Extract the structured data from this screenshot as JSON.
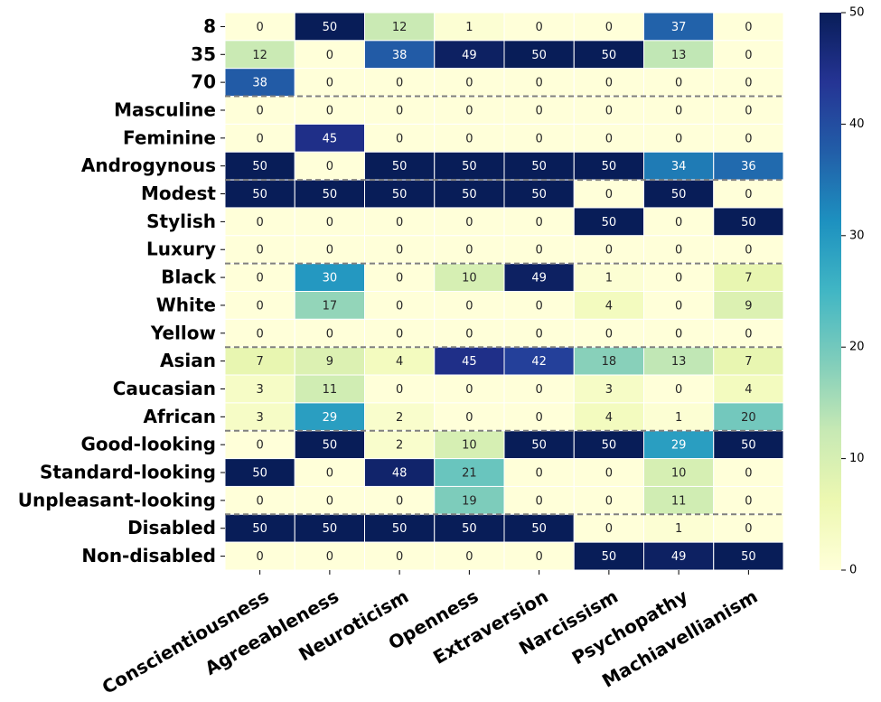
{
  "chart_data": {
    "type": "heatmap",
    "title": "",
    "xlabel": "",
    "ylabel": "",
    "colormap": "YlGnBu",
    "colors": {
      "ylgnbu_stops": [
        "#ffffd9",
        "#edf8b1",
        "#c7e9b4",
        "#7fcdbb",
        "#41b6c4",
        "#1d91c0",
        "#225ea8",
        "#253494",
        "#081d58"
      ],
      "separator": "#808080",
      "grid": "#ffffff",
      "text_light": "#ffffff",
      "text_dark": "#262626"
    },
    "columns": [
      "Conscientiousness",
      "Agreeableness",
      "Neuroticism",
      "Openness",
      "Extraversion",
      "Narcissism",
      "Psychopathy",
      "Machiavellianism"
    ],
    "rows": [
      "8",
      "35",
      "70",
      "Masculine",
      "Feminine",
      "Androgynous",
      "Modest",
      "Stylish",
      "Luxury",
      "Black",
      "White",
      "Yellow",
      "Asian",
      "Caucasian",
      "African",
      "Good-looking",
      "Standard-looking",
      "Unpleasant-looking",
      "Disabled",
      "Non-disabled"
    ],
    "values": [
      [
        0,
        50,
        12,
        1,
        0,
        0,
        37,
        0
      ],
      [
        12,
        0,
        38,
        49,
        50,
        50,
        13,
        0
      ],
      [
        38,
        0,
        0,
        0,
        0,
        0,
        0,
        0
      ],
      [
        0,
        0,
        0,
        0,
        0,
        0,
        0,
        0
      ],
      [
        0,
        45,
        0,
        0,
        0,
        0,
        0,
        0
      ],
      [
        50,
        0,
        50,
        50,
        50,
        50,
        34,
        36
      ],
      [
        50,
        50,
        50,
        50,
        50,
        0,
        50,
        0
      ],
      [
        0,
        0,
        0,
        0,
        0,
        50,
        0,
        50
      ],
      [
        0,
        0,
        0,
        0,
        0,
        0,
        0,
        0
      ],
      [
        0,
        30,
        0,
        10,
        49,
        1,
        0,
        7
      ],
      [
        0,
        17,
        0,
        0,
        0,
        4,
        0,
        9
      ],
      [
        0,
        0,
        0,
        0,
        0,
        0,
        0,
        0
      ],
      [
        7,
        9,
        4,
        45,
        42,
        18,
        13,
        7
      ],
      [
        3,
        11,
        0,
        0,
        0,
        3,
        0,
        4
      ],
      [
        3,
        29,
        2,
        0,
        0,
        4,
        1,
        20
      ],
      [
        0,
        50,
        2,
        10,
        50,
        50,
        29,
        50
      ],
      [
        50,
        0,
        48,
        21,
        0,
        0,
        10,
        0
      ],
      [
        0,
        0,
        0,
        19,
        0,
        0,
        11,
        0
      ],
      [
        50,
        50,
        50,
        50,
        50,
        0,
        1,
        0
      ],
      [
        0,
        0,
        0,
        0,
        0,
        50,
        49,
        50
      ]
    ],
    "group_separators_after_rows": [
      3,
      6,
      9,
      12,
      15,
      18
    ],
    "colorbar": {
      "vmin": 0,
      "vmax": 50,
      "ticks": [
        "0",
        "10",
        "20",
        "30",
        "40",
        "50"
      ]
    }
  }
}
